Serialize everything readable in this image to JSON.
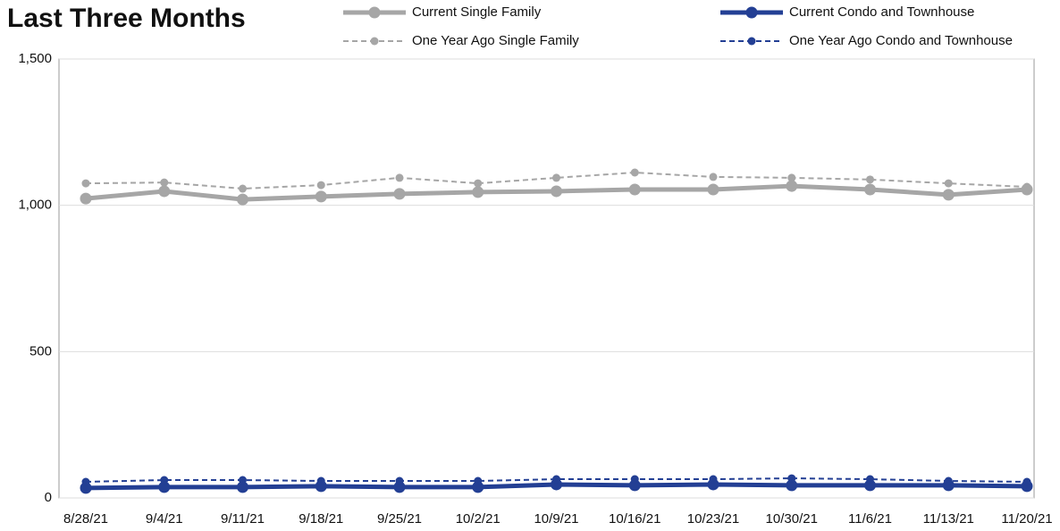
{
  "chart_data": {
    "type": "line",
    "title": "Last Three Months",
    "categories": [
      "8/28/21",
      "9/4/21",
      "9/11/21",
      "9/18/21",
      "9/25/21",
      "10/2/21",
      "10/9/21",
      "10/16/21",
      "10/23/21",
      "10/30/21",
      "11/6/21",
      "11/13/21",
      "11/20/21"
    ],
    "series": [
      {
        "name": "Current Single Family",
        "color": "#a6a6a6",
        "dashed": false,
        "values": [
          1023,
          1048,
          1020,
          1030,
          1039,
          1045,
          1048,
          1054,
          1054,
          1066,
          1054,
          1036,
          1054
        ]
      },
      {
        "name": "Current Condo and Townhouse",
        "color": "#233f94",
        "dashed": false,
        "values": [
          34,
          37,
          37,
          40,
          37,
          37,
          46,
          43,
          46,
          43,
          43,
          43,
          40
        ]
      },
      {
        "name": "One Year Ago Single Family",
        "color": "#a6a6a6",
        "dashed": true,
        "values": [
          1075,
          1078,
          1057,
          1069,
          1094,
          1075,
          1094,
          1112,
          1097,
          1094,
          1088,
          1075,
          1063
        ]
      },
      {
        "name": "One Year Ago Condo and Townhouse",
        "color": "#233f94",
        "dashed": true,
        "values": [
          55,
          61,
          61,
          58,
          58,
          58,
          64,
          64,
          64,
          67,
          64,
          58,
          55
        ]
      }
    ],
    "ylim": [
      0,
      1500
    ],
    "yticks": [
      0,
      500,
      {
        "value": 1000,
        "label": "1,000"
      },
      {
        "value": 1500,
        "label": "1,500"
      }
    ],
    "grid": true
  }
}
